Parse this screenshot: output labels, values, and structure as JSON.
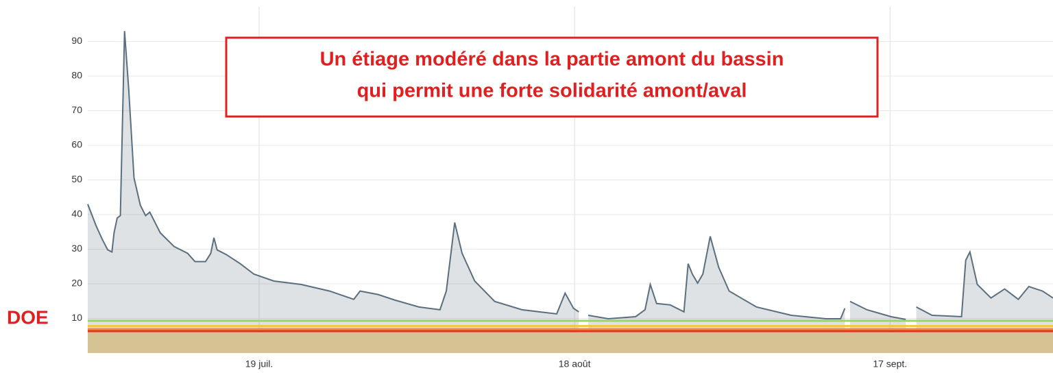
{
  "chart_data": {
    "type": "area",
    "annotation": [
      "Un étiage modéré dans la partie amont du bassin",
      "qui permit une forte solidarité amont/aval"
    ],
    "threshold_label": "DOE",
    "xlim": [
      183.7,
      275.5
    ],
    "xticks": [
      {
        "value": 200,
        "label": "19 juil."
      },
      {
        "value": 230,
        "label": "18 août"
      },
      {
        "value": 260,
        "label": "17 sept."
      }
    ],
    "ylim": [
      0,
      100
    ],
    "yticks": [
      10,
      20,
      30,
      40,
      50,
      60,
      70,
      80,
      90
    ],
    "grid": true,
    "series": [
      {
        "color": "#5a6e7e",
        "x": [
          183.7,
          184.5,
          185.1,
          185.6,
          186,
          186.2,
          186.5,
          186.8,
          187.2,
          187.6,
          188.1,
          188.7,
          189.2,
          189.6,
          190.6,
          191.9,
          193.2,
          193.9,
          194.9,
          195.4,
          195.7,
          196,
          196.9,
          198.2,
          199.5,
          201.4,
          204,
          206.7,
          209,
          209.6,
          211.3,
          212.9,
          215.2,
          217.2,
          217.8,
          218.6,
          219.3,
          220.5,
          222.4,
          225,
          228.3,
          229.1,
          229.9,
          230.4,
          230.8,
          231.3,
          233.2,
          235.8,
          236.7,
          237.2,
          237.8,
          239.1,
          240.4,
          240.8,
          241.2,
          241.7,
          242.2,
          242.9,
          243.7,
          244.7,
          247.3,
          250.6,
          253.9,
          255.3,
          255.7,
          256,
          256.2,
          257.8,
          260.1,
          261.5,
          262,
          262.5,
          264,
          266.8,
          267.2,
          267.6,
          268.3,
          269.6,
          270.9,
          272.2,
          273.2,
          274.5,
          275.5
        ],
        "values": [
          43,
          36.7,
          32.7,
          29.8,
          29.2,
          34.7,
          39,
          39.7,
          93,
          76,
          50.6,
          42.7,
          39.7,
          40.7,
          34.7,
          30.8,
          28.8,
          26.4,
          26.4,
          28.8,
          33.3,
          29.8,
          28.4,
          25.8,
          22.8,
          20.8,
          19.8,
          17.9,
          15.5,
          17.9,
          16.9,
          15.3,
          13.3,
          12.5,
          17.9,
          37.7,
          28.8,
          20.8,
          14.9,
          12.5,
          11.3,
          17.3,
          12.9,
          11.9,
          null,
          10.9,
          9.9,
          10.5,
          12.5,
          19.8,
          14.3,
          13.9,
          11.9,
          25.8,
          22.8,
          20.2,
          22.8,
          33.7,
          24.8,
          17.9,
          13.3,
          10.9,
          9.9,
          9.9,
          12.9,
          null,
          14.9,
          12.5,
          10.5,
          9.7,
          null,
          13.3,
          10.9,
          10.5,
          26.8,
          29.2,
          19.8,
          15.9,
          18.5,
          15.5,
          19.2,
          17.9,
          15.9
        ]
      }
    ],
    "thresholds": [
      {
        "value": 9.3,
        "color": "#9dd36a"
      },
      {
        "value": 7.8,
        "color": "#f5c542"
      },
      {
        "value": 6.9,
        "color": "#f08a30"
      },
      {
        "value": 6.3,
        "color": "#e03020"
      }
    ],
    "floor_area": {
      "value": 6,
      "color": "#d6c394"
    }
  }
}
